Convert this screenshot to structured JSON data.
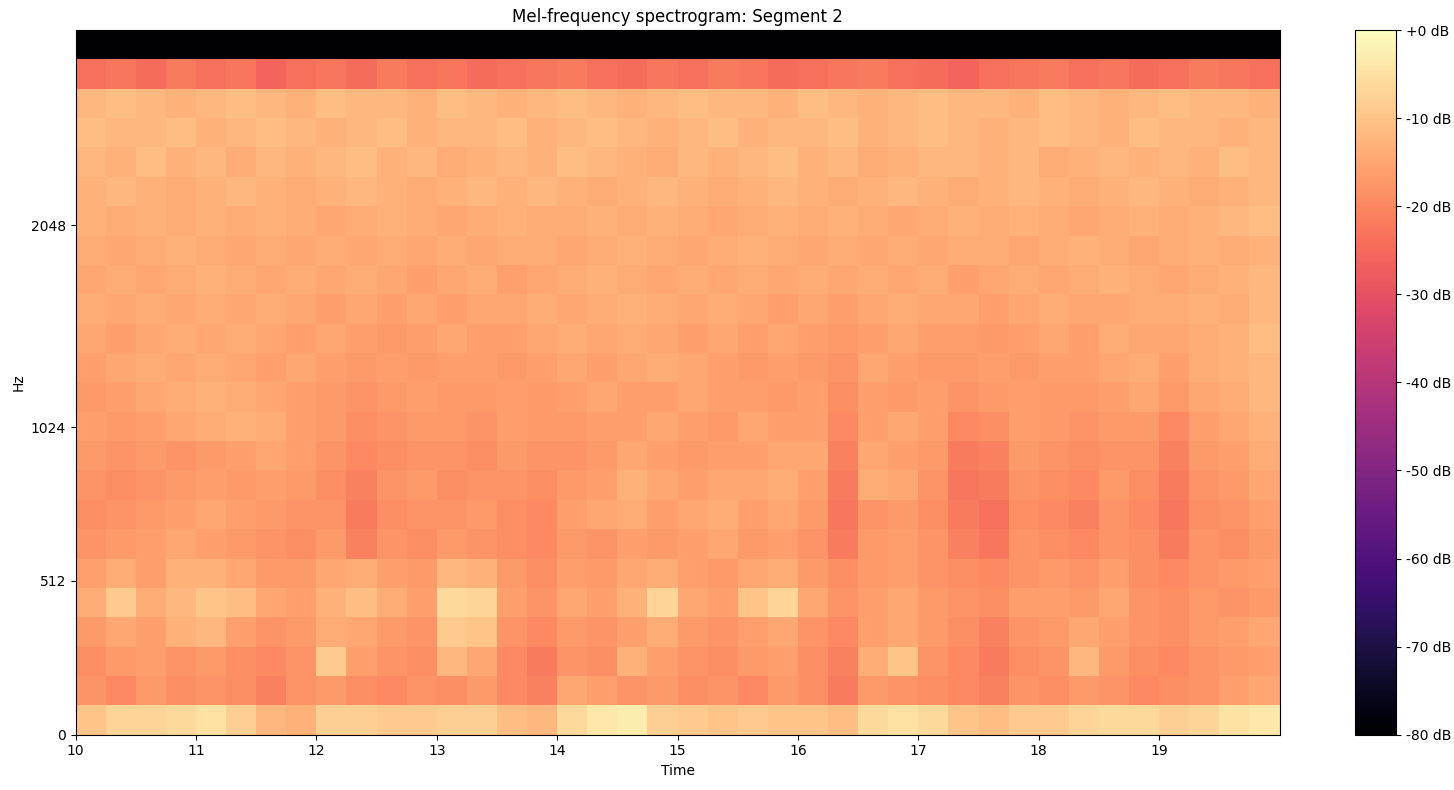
{
  "chart_data": {
    "type": "heatmap",
    "title": "Mel-frequency spectrogram: Segment 2",
    "x_label": "Time",
    "y_label": "Hz",
    "xlim": [
      10,
      20
    ],
    "xticks": [
      10,
      11,
      12,
      13,
      14,
      15,
      16,
      17,
      18,
      19
    ],
    "ylim": [
      0,
      4000
    ],
    "yticks": [
      0,
      512,
      1024,
      2048
    ],
    "colorbar": {
      "range": [
        -80,
        0
      ],
      "ticks": [
        {
          "value": 0,
          "label": "+0 dB"
        },
        {
          "value": -10,
          "label": "-10 dB"
        },
        {
          "value": -20,
          "label": "-20 dB"
        },
        {
          "value": -30,
          "label": "-30 dB"
        },
        {
          "value": -40,
          "label": "-40 dB"
        },
        {
          "value": -50,
          "label": "-50 dB"
        },
        {
          "value": -60,
          "label": "-60 dB"
        },
        {
          "value": -70,
          "label": "-70 dB"
        },
        {
          "value": -80,
          "label": "-80 dB"
        }
      ]
    },
    "cells": [
      [
        -10,
        -7,
        -7,
        -6,
        -5,
        -8,
        -12,
        -13,
        -8,
        -8,
        -9,
        -9,
        -8,
        -8,
        -11,
        -12,
        -6,
        -4,
        -3,
        -8,
        -9,
        -10,
        -9,
        -10,
        -10,
        -11,
        -6,
        -5,
        -6,
        -10,
        -11,
        -9,
        -9,
        -7,
        -6,
        -6,
        -8,
        -7,
        -5,
        -4
      ],
      [
        -18,
        -20,
        -17,
        -19,
        -18,
        -19,
        -21,
        -18,
        -17,
        -19,
        -20,
        -18,
        -19,
        -17,
        -20,
        -21,
        -15,
        -16,
        -18,
        -17,
        -19,
        -18,
        -20,
        -17,
        -19,
        -22,
        -17,
        -18,
        -19,
        -20,
        -21,
        -18,
        -19,
        -17,
        -18,
        -20,
        -19,
        -18,
        -16,
        -15
      ],
      [
        -19,
        -17,
        -16,
        -18,
        -17,
        -19,
        -20,
        -18,
        -9,
        -16,
        -18,
        -19,
        -12,
        -15,
        -20,
        -22,
        -18,
        -19,
        -13,
        -16,
        -18,
        -19,
        -17,
        -16,
        -19,
        -21,
        -14,
        -10,
        -18,
        -20,
        -22,
        -19,
        -18,
        -12,
        -17,
        -19,
        -20,
        -18,
        -17,
        -16
      ],
      [
        -17,
        -15,
        -16,
        -13,
        -12,
        -16,
        -18,
        -17,
        -14,
        -15,
        -17,
        -18,
        -9,
        -10,
        -18,
        -20,
        -17,
        -18,
        -16,
        -14,
        -17,
        -18,
        -16,
        -15,
        -18,
        -20,
        -16,
        -15,
        -17,
        -19,
        -21,
        -18,
        -17,
        -15,
        -16,
        -18,
        -19,
        -17,
        -16,
        -15
      ],
      [
        -14,
        -9,
        -14,
        -12,
        -10,
        -11,
        -15,
        -16,
        -13,
        -11,
        -14,
        -16,
        -6,
        -7,
        -16,
        -18,
        -15,
        -16,
        -13,
        -7,
        -15,
        -16,
        -10,
        -7,
        -15,
        -18,
        -16,
        -15,
        -17,
        -18,
        -19,
        -16,
        -16,
        -17,
        -15,
        -18,
        -19,
        -17,
        -18,
        -17
      ],
      [
        -16,
        -14,
        -16,
        -13,
        -13,
        -15,
        -17,
        -17,
        -15,
        -14,
        -16,
        -17,
        -12,
        -13,
        -17,
        -19,
        -16,
        -17,
        -15,
        -14,
        -16,
        -17,
        -15,
        -14,
        -17,
        -19,
        -17,
        -16,
        -18,
        -19,
        -20,
        -18,
        -17,
        -18,
        -16,
        -19,
        -20,
        -18,
        -17,
        -16
      ],
      [
        -18,
        -17,
        -16,
        -15,
        -16,
        -17,
        -18,
        -19,
        -17,
        -21,
        -18,
        -19,
        -17,
        -18,
        -19,
        -20,
        -17,
        -18,
        -16,
        -17,
        -16,
        -15,
        -17,
        -16,
        -18,
        -22,
        -17,
        -16,
        -18,
        -21,
        -23,
        -18,
        -19,
        -20,
        -18,
        -19,
        -22,
        -18,
        -19,
        -17
      ],
      [
        -19,
        -18,
        -17,
        -16,
        -15,
        -16,
        -17,
        -18,
        -18,
        -22,
        -19,
        -18,
        -18,
        -17,
        -19,
        -20,
        -16,
        -15,
        -14,
        -16,
        -15,
        -14,
        -16,
        -15,
        -17,
        -23,
        -18,
        -17,
        -19,
        -22,
        -24,
        -19,
        -20,
        -21,
        -18,
        -20,
        -23,
        -19,
        -18,
        -16
      ],
      [
        -18,
        -19,
        -18,
        -17,
        -16,
        -17,
        -16,
        -17,
        -19,
        -21,
        -18,
        -17,
        -19,
        -18,
        -18,
        -19,
        -17,
        -16,
        -13,
        -15,
        -16,
        -15,
        -15,
        -14,
        -16,
        -22,
        -14,
        -15,
        -18,
        -23,
        -22,
        -18,
        -19,
        -20,
        -17,
        -19,
        -22,
        -18,
        -17,
        -15
      ],
      [
        -17,
        -18,
        -17,
        -18,
        -17,
        -16,
        -15,
        -16,
        -18,
        -20,
        -19,
        -18,
        -18,
        -19,
        -17,
        -18,
        -18,
        -17,
        -15,
        -16,
        -17,
        -16,
        -16,
        -15,
        -15,
        -21,
        -15,
        -16,
        -17,
        -22,
        -21,
        -17,
        -18,
        -19,
        -18,
        -18,
        -21,
        -17,
        -16,
        -14
      ],
      [
        -16,
        -17,
        -16,
        -15,
        -14,
        -13,
        -14,
        -16,
        -17,
        -19,
        -18,
        -17,
        -17,
        -18,
        -16,
        -17,
        -17,
        -16,
        -16,
        -15,
        -16,
        -17,
        -15,
        -16,
        -16,
        -20,
        -16,
        -15,
        -16,
        -20,
        -19,
        -16,
        -17,
        -18,
        -17,
        -17,
        -20,
        -16,
        -15,
        -13
      ],
      [
        -17,
        -16,
        -15,
        -14,
        -13,
        -14,
        -15,
        -16,
        -17,
        -18,
        -17,
        -16,
        -17,
        -17,
        -16,
        -17,
        -16,
        -15,
        -16,
        -16,
        -15,
        -16,
        -16,
        -17,
        -16,
        -19,
        -16,
        -17,
        -16,
        -18,
        -17,
        -16,
        -17,
        -17,
        -16,
        -15,
        -17,
        -15,
        -14,
        -12
      ],
      [
        -16,
        -15,
        -14,
        -15,
        -14,
        -15,
        -16,
        -15,
        -16,
        -17,
        -16,
        -17,
        -16,
        -16,
        -17,
        -16,
        -15,
        -16,
        -15,
        -14,
        -15,
        -16,
        -17,
        -16,
        -17,
        -18,
        -15,
        -16,
        -17,
        -17,
        -16,
        -17,
        -16,
        -16,
        -15,
        -14,
        -16,
        -14,
        -13,
        -12
      ],
      [
        -15,
        -16,
        -15,
        -14,
        -15,
        -14,
        -15,
        -16,
        -15,
        -16,
        -17,
        -16,
        -15,
        -16,
        -16,
        -15,
        -14,
        -15,
        -14,
        -15,
        -16,
        -15,
        -16,
        -15,
        -16,
        -17,
        -16,
        -15,
        -16,
        -16,
        -17,
        -16,
        -15,
        -16,
        -14,
        -15,
        -15,
        -14,
        -13,
        -11
      ],
      [
        -14,
        -15,
        -14,
        -15,
        -14,
        -15,
        -14,
        -15,
        -16,
        -15,
        -16,
        -15,
        -16,
        -15,
        -15,
        -14,
        -15,
        -14,
        -13,
        -14,
        -15,
        -14,
        -15,
        -16,
        -15,
        -16,
        -15,
        -14,
        -15,
        -15,
        -16,
        -15,
        -14,
        -15,
        -15,
        -14,
        -14,
        -13,
        -14,
        -12
      ],
      [
        -15,
        -14,
        -15,
        -14,
        -13,
        -14,
        -15,
        -14,
        -15,
        -14,
        -15,
        -16,
        -15,
        -14,
        -16,
        -15,
        -14,
        -13,
        -14,
        -15,
        -14,
        -15,
        -14,
        -15,
        -14,
        -15,
        -14,
        -15,
        -14,
        -16,
        -15,
        -14,
        -15,
        -14,
        -13,
        -14,
        -15,
        -14,
        -13,
        -12
      ],
      [
        -14,
        -15,
        -14,
        -13,
        -14,
        -15,
        -14,
        -15,
        -14,
        -15,
        -14,
        -15,
        -14,
        -15,
        -14,
        -14,
        -15,
        -14,
        -13,
        -14,
        -15,
        -14,
        -13,
        -14,
        -15,
        -14,
        -15,
        -14,
        -15,
        -14,
        -14,
        -15,
        -14,
        -13,
        -14,
        -15,
        -14,
        -13,
        -14,
        -13
      ],
      [
        -13,
        -14,
        -13,
        -14,
        -13,
        -14,
        -13,
        -14,
        -15,
        -14,
        -13,
        -14,
        -15,
        -14,
        -13,
        -14,
        -14,
        -13,
        -14,
        -13,
        -14,
        -15,
        -14,
        -13,
        -14,
        -13,
        -14,
        -15,
        -14,
        -13,
        -14,
        -13,
        -14,
        -15,
        -14,
        -13,
        -14,
        -13,
        -12,
        -11
      ],
      [
        -13,
        -12,
        -13,
        -14,
        -13,
        -12,
        -13,
        -14,
        -13,
        -12,
        -13,
        -14,
        -13,
        -12,
        -13,
        -12,
        -13,
        -14,
        -13,
        -12,
        -13,
        -14,
        -13,
        -12,
        -13,
        -14,
        -13,
        -12,
        -13,
        -14,
        -13,
        -12,
        -13,
        -14,
        -13,
        -12,
        -13,
        -14,
        -13,
        -12
      ],
      [
        -12,
        -13,
        -11,
        -13,
        -12,
        -14,
        -12,
        -13,
        -12,
        -11,
        -13,
        -12,
        -14,
        -13,
        -12,
        -13,
        -11,
        -12,
        -13,
        -14,
        -12,
        -13,
        -12,
        -11,
        -13,
        -12,
        -14,
        -13,
        -12,
        -12,
        -13,
        -12,
        -14,
        -13,
        -12,
        -13,
        -12,
        -13,
        -11,
        -12
      ],
      [
        -11,
        -12,
        -12,
        -11,
        -13,
        -12,
        -11,
        -12,
        -13,
        -12,
        -11,
        -13,
        -12,
        -12,
        -11,
        -13,
        -12,
        -11,
        -12,
        -13,
        -12,
        -11,
        -13,
        -12,
        -12,
        -11,
        -13,
        -12,
        -11,
        -12,
        -13,
        -12,
        -11,
        -12,
        -13,
        -11,
        -12,
        -12,
        -13,
        -12
      ],
      [
        -12,
        -11,
        -12,
        -13,
        -12,
        -11,
        -12,
        -13,
        -11,
        -12,
        -12,
        -13,
        -11,
        -12,
        -13,
        -12,
        -11,
        -12,
        -13,
        -12,
        -11,
        -12,
        -12,
        -13,
        -11,
        -12,
        -13,
        -12,
        -11,
        -12,
        -12,
        -13,
        -11,
        -12,
        -13,
        -12,
        -11,
        -12,
        -12,
        -13
      ],
      [
        -24,
        -23,
        -25,
        -22,
        -24,
        -23,
        -26,
        -24,
        -23,
        -25,
        -22,
        -24,
        -23,
        -25,
        -24,
        -23,
        -22,
        -24,
        -25,
        -23,
        -24,
        -22,
        -23,
        -25,
        -24,
        -23,
        -22,
        -24,
        -25,
        -26,
        -24,
        -23,
        -22,
        -24,
        -23,
        -25,
        -24,
        -22,
        -23,
        -24
      ],
      [
        -80,
        -80,
        -80,
        -80,
        -80,
        -80,
        -80,
        -80,
        -80,
        -80,
        -80,
        -80,
        -80,
        -80,
        -80,
        -80,
        -80,
        -80,
        -80,
        -80,
        -80,
        -80,
        -80,
        -80,
        -80,
        -80,
        -80,
        -80,
        -80,
        -80,
        -80,
        -80,
        -80,
        -80,
        -80,
        -80,
        -80,
        -80,
        -80,
        -80
      ]
    ]
  }
}
